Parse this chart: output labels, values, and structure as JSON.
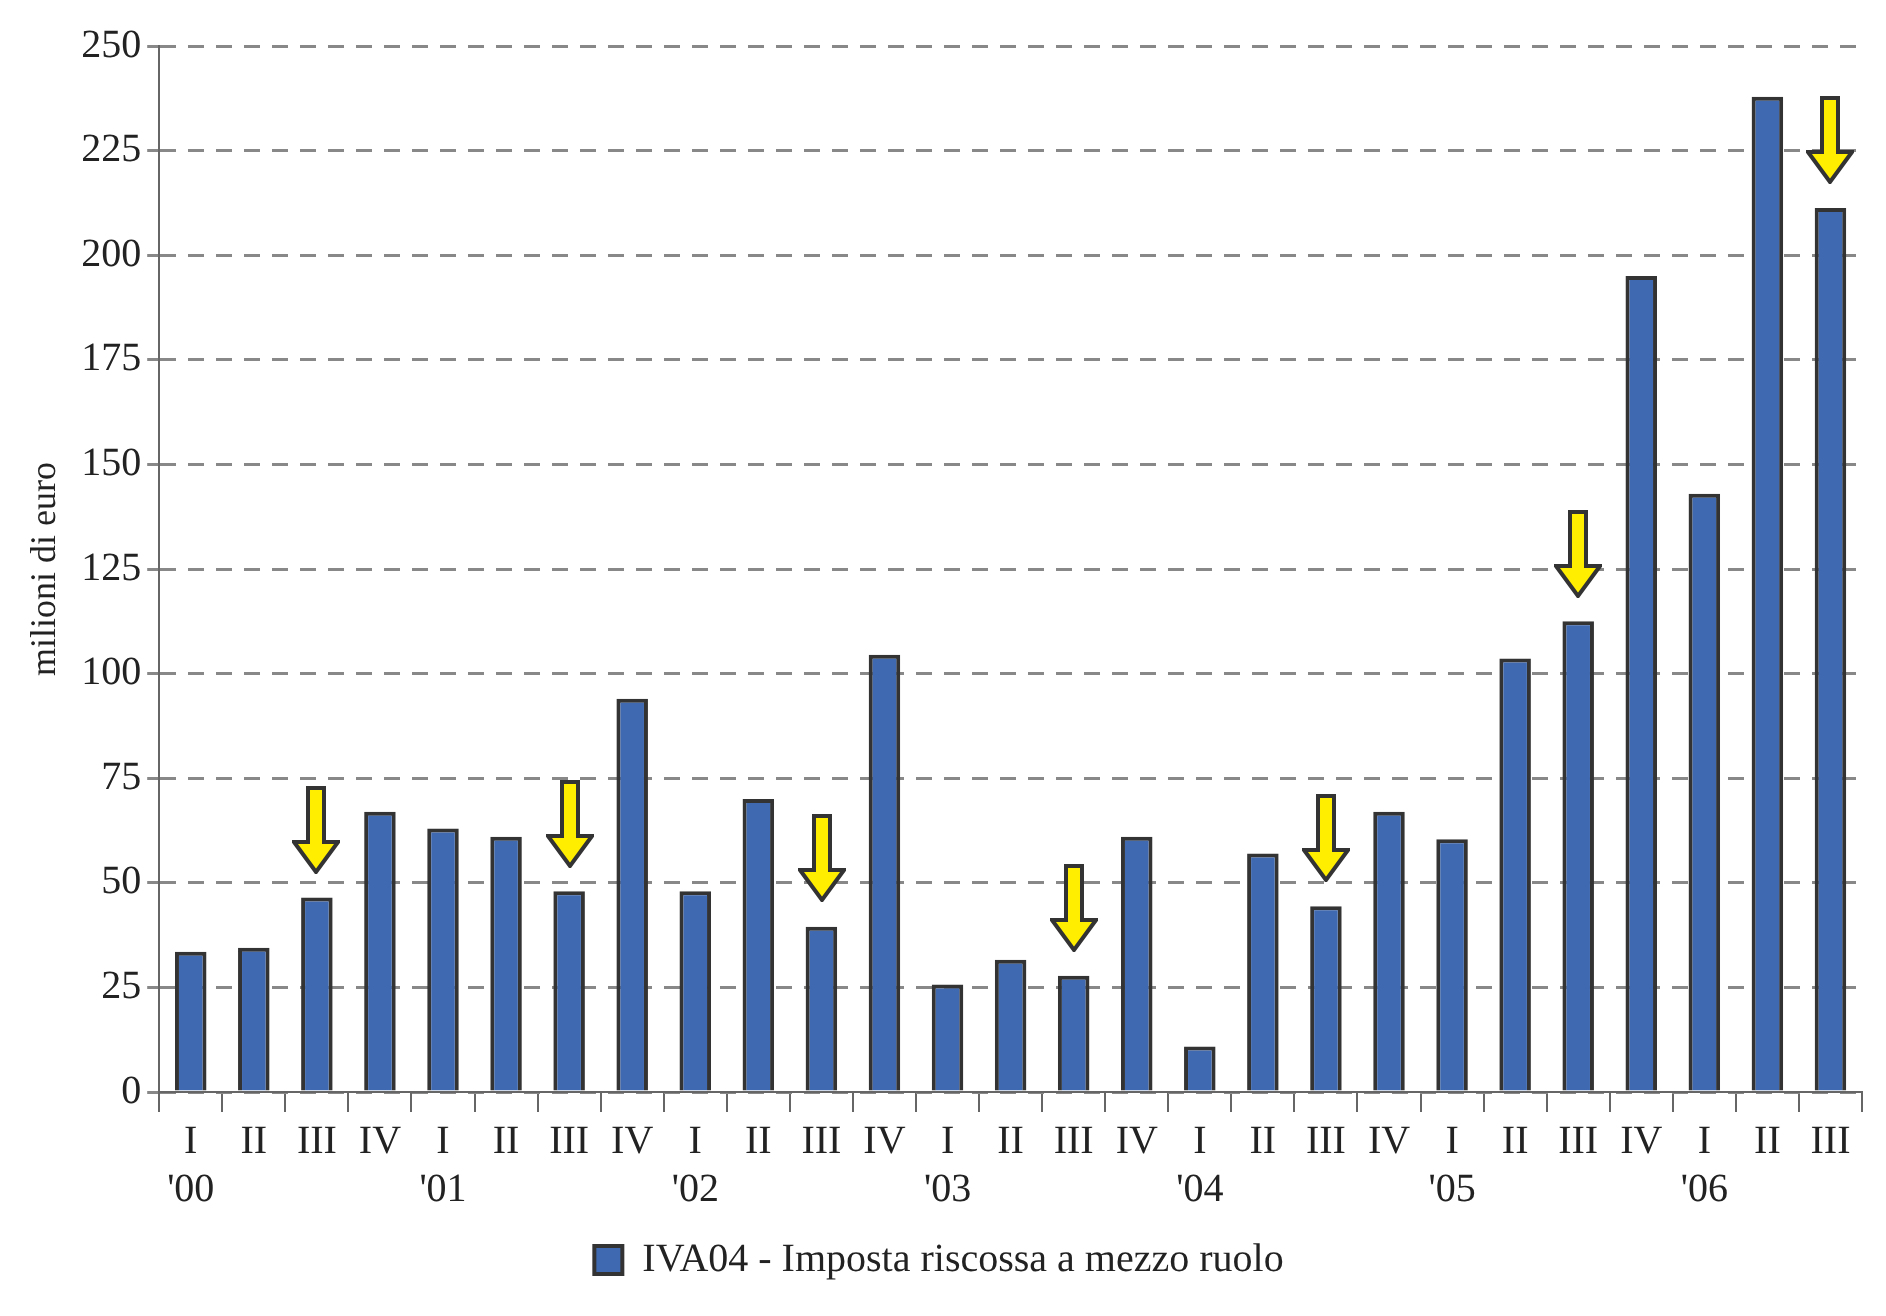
{
  "chart_data": {
    "type": "bar",
    "ylabel": "milioni di euro",
    "categories": [
      "I\n'00",
      "II",
      "III",
      "IV",
      "I\n'01",
      "II",
      "III",
      "IV",
      "I\n'02",
      "II",
      "III",
      "IV",
      "I\n'03",
      "II",
      "III",
      "IV",
      "I\n'04",
      "II",
      "III",
      "IV",
      "I\n'05",
      "II",
      "III",
      "IV",
      "I\n'06",
      "II",
      "III"
    ],
    "series": [
      {
        "name": "IVA04 - Imposta riscossa a mezzo ruolo",
        "color": "#3f69b0",
        "values": [
          33.5,
          34.5,
          46.5,
          67,
          63,
          61,
          48,
          94,
          48,
          70,
          39.5,
          104.5,
          25.7,
          31.6,
          27.8,
          61,
          10.9,
          57,
          44.4,
          67,
          60.4,
          103.6,
          112.5,
          195,
          143,
          237.9,
          211.3
        ]
      }
    ],
    "ylim": [
      0,
      250
    ],
    "yticks": [
      0,
      25,
      50,
      75,
      100,
      125,
      150,
      175,
      200,
      225,
      250
    ],
    "grid": "y",
    "legend": "bottom"
  }
}
